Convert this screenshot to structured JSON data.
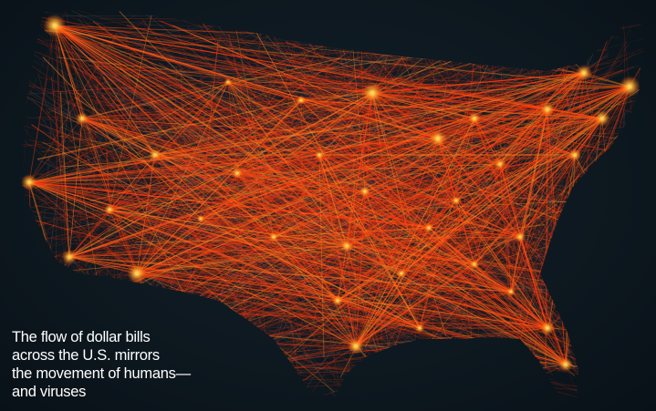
{
  "caption": {
    "lines": [
      "The flow of dollar bills",
      "across the U.S. mirrors",
      "the movement of humans—",
      "and viruses"
    ]
  },
  "colors": {
    "background": "#0d1820",
    "flow_line": "#ff3a10",
    "flow_line_bright": "#ff8a20",
    "hub_glow": "#ffd24a",
    "caption_text": "#ffffff"
  }
}
